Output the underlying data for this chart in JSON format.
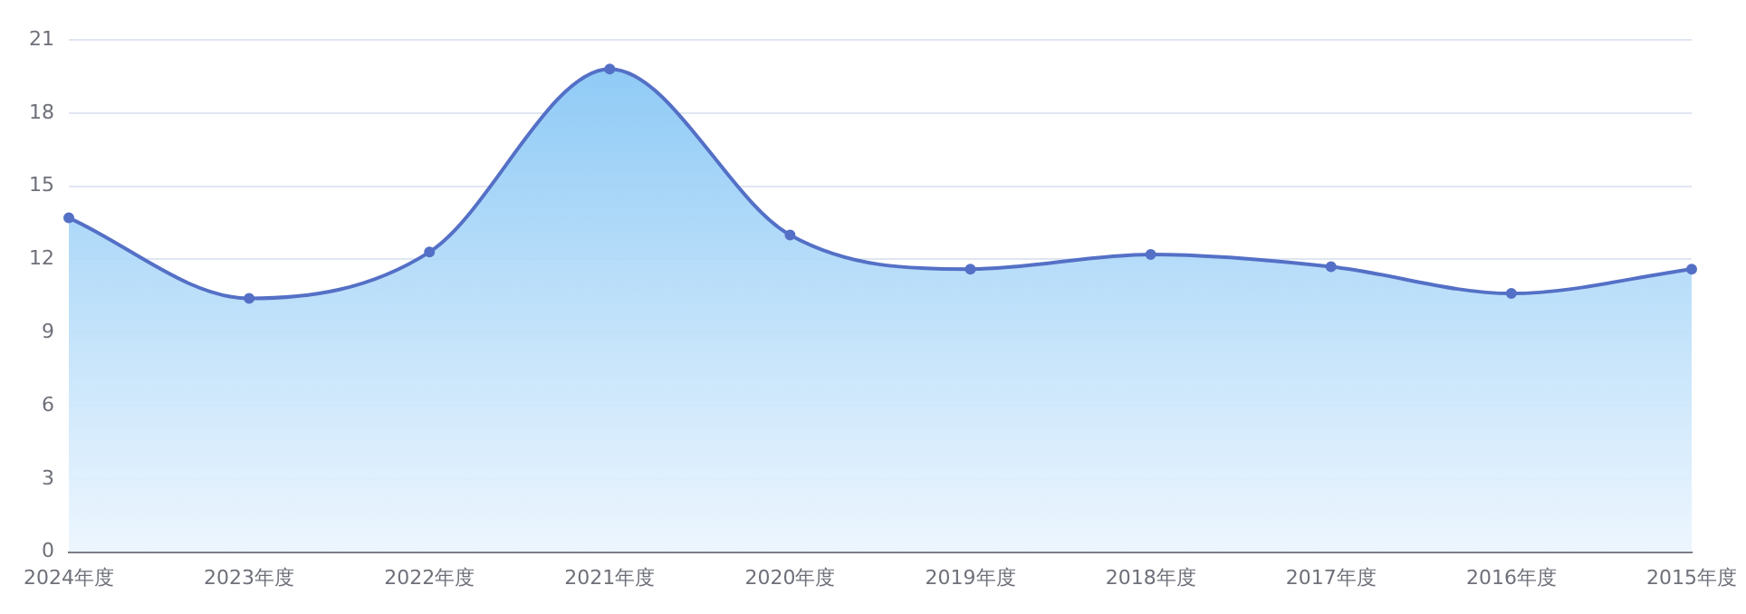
{
  "chart_data": {
    "type": "area",
    "categories": [
      "2024年度",
      "2023年度",
      "2022年度",
      "2021年度",
      "2020年度",
      "2019年度",
      "2018年度",
      "2017年度",
      "2016年度",
      "2015年度"
    ],
    "series": [
      {
        "color": "#5470c6",
        "values": [
          13.7,
          10.4,
          12.3,
          19.8,
          13.0,
          11.6,
          12.2,
          11.7,
          10.6,
          11.6
        ]
      }
    ],
    "ylim": [
      0,
      21
    ],
    "yticks": [
      0,
      3,
      6,
      9,
      12,
      15,
      18,
      21
    ],
    "grid": "y",
    "legend": false,
    "marker": "circle",
    "line_style": "solid"
  }
}
